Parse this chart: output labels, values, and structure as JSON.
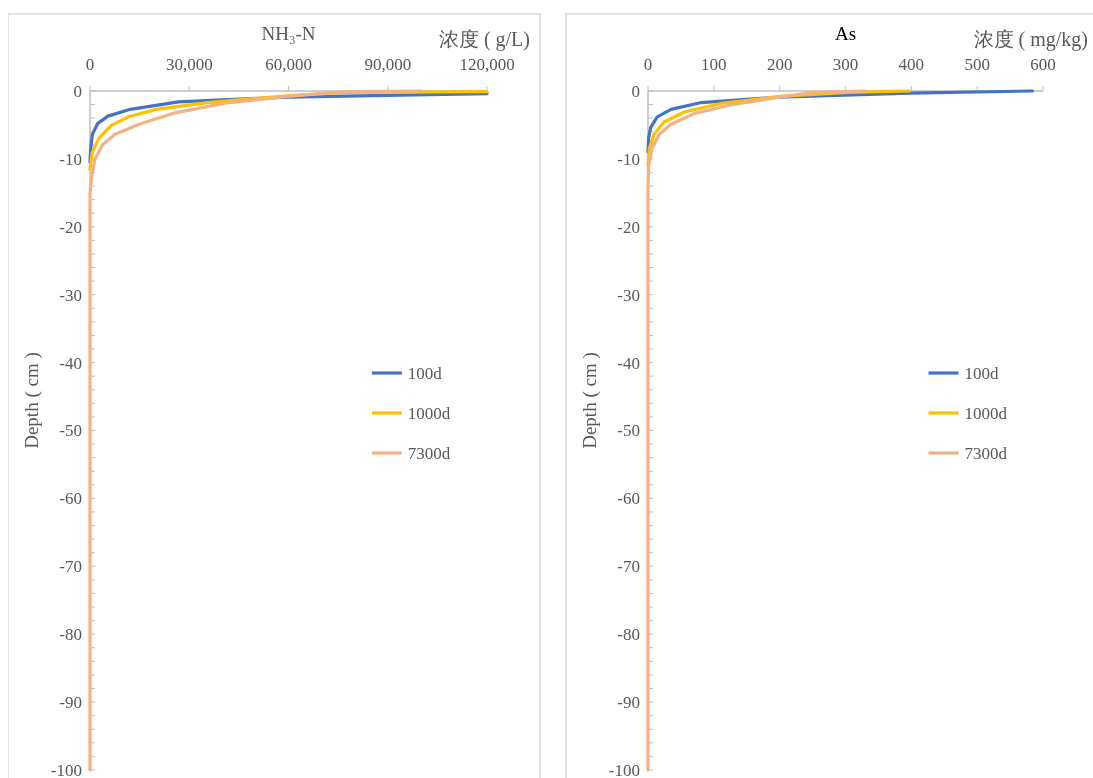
{
  "chart_data": [
    {
      "type": "line",
      "title": "NH₃-N",
      "xlabel": "浓度 ( g/L)",
      "ylabel": "Depth ( cm )",
      "xlim": [
        0,
        120000
      ],
      "xticks": [
        0,
        {
          "value": 30000,
          "label": "30,000"
        },
        {
          "value": 60000,
          "label": "60,000"
        },
        {
          "value": 90000,
          "label": "90,000"
        },
        {
          "value": 120000,
          "label": "120,000"
        }
      ],
      "ylim": [
        -100,
        0
      ],
      "yticks": [
        0,
        {
          "value": -2,
          "label": null
        },
        {
          "value": -4,
          "label": null
        },
        {
          "value": -6,
          "label": null
        },
        {
          "value": -8,
          "label": null
        },
        -10,
        {
          "value": -12,
          "label": null
        },
        {
          "value": -14,
          "label": null
        },
        {
          "value": -16,
          "label": null
        },
        {
          "value": -18,
          "label": null
        },
        -20,
        {
          "value": -22,
          "label": null
        },
        {
          "value": -24,
          "label": null
        },
        {
          "value": -26,
          "label": null
        },
        {
          "value": -28,
          "label": null
        },
        -30,
        {
          "value": -32,
          "label": null
        },
        {
          "value": -34,
          "label": null
        },
        {
          "value": -36,
          "label": null
        },
        {
          "value": -38,
          "label": null
        },
        -40,
        {
          "value": -42,
          "label": null
        },
        {
          "value": -44,
          "label": null
        },
        {
          "value": -46,
          "label": null
        },
        {
          "value": -48,
          "label": null
        },
        -50,
        {
          "value": -52,
          "label": null
        },
        {
          "value": -54,
          "label": null
        },
        {
          "value": -56,
          "label": null
        },
        {
          "value": -58,
          "label": null
        },
        -60,
        {
          "value": -62,
          "label": null
        },
        {
          "value": -64,
          "label": null
        },
        {
          "value": -66,
          "label": null
        },
        {
          "value": -68,
          "label": null
        },
        -70,
        {
          "value": -72,
          "label": null
        },
        {
          "value": -74,
          "label": null
        },
        {
          "value": -76,
          "label": null
        },
        {
          "value": -78,
          "label": null
        },
        -80,
        {
          "value": -82,
          "label": null
        },
        {
          "value": -84,
          "label": null
        },
        {
          "value": -86,
          "label": null
        },
        {
          "value": -88,
          "label": null
        },
        -90,
        {
          "value": -92,
          "label": null
        },
        {
          "value": -94,
          "label": null
        },
        {
          "value": -96,
          "label": null
        },
        {
          "value": -98,
          "label": null
        },
        -100
      ],
      "legend": "right",
      "line_style": "solid",
      "marker": "none",
      "series": [
        {
          "name": "100d",
          "color": "#4472c4",
          "x": [
            120000,
            59500,
            26700,
            12200,
            5400,
            2300,
            700,
            200,
            0
          ],
          "values": [
            -0.4,
            -0.9,
            -1.6,
            -2.7,
            -3.7,
            -4.8,
            -6.4,
            -8.5,
            -10.5
          ]
        },
        {
          "name": "1000d",
          "color": "#ffc000",
          "x": [
            120000,
            77000,
            59500,
            35500,
            20000,
            11600,
            6400,
            2800,
            700,
            0
          ],
          "values": [
            -0.1,
            -0.2,
            -0.7,
            -1.7,
            -2.7,
            -3.8,
            -5.1,
            -6.9,
            -9,
            -11.5
          ]
        },
        {
          "name": "7300d",
          "color": "#f4b183",
          "x": [
            100000,
            77000,
            59500,
            40700,
            25000,
            14800,
            7500,
            3800,
            1500,
            400,
            0,
            0
          ],
          "values": [
            0,
            -0.1,
            -0.8,
            -1.8,
            -3.3,
            -4.9,
            -6.4,
            -7.9,
            -10,
            -13,
            -15,
            -100
          ]
        }
      ]
    },
    {
      "type": "line",
      "title": "As",
      "xlabel": "浓度 ( mg/kg)",
      "ylabel": "Depth ( cm )",
      "xlim": [
        0,
        600
      ],
      "xticks": [
        0,
        100,
        200,
        300,
        400,
        500,
        600
      ],
      "ylim": [
        -100,
        0
      ],
      "yticks": [
        0,
        {
          "value": -2,
          "label": null
        },
        {
          "value": -4,
          "label": null
        },
        {
          "value": -6,
          "label": null
        },
        {
          "value": -8,
          "label": null
        },
        -10,
        {
          "value": -12,
          "label": null
        },
        {
          "value": -14,
          "label": null
        },
        {
          "value": -16,
          "label": null
        },
        {
          "value": -18,
          "label": null
        },
        -20,
        {
          "value": -22,
          "label": null
        },
        {
          "value": -24,
          "label": null
        },
        {
          "value": -26,
          "label": null
        },
        {
          "value": -28,
          "label": null
        },
        -30,
        {
          "value": -32,
          "label": null
        },
        {
          "value": -34,
          "label": null
        },
        {
          "value": -36,
          "label": null
        },
        {
          "value": -38,
          "label": null
        },
        -40,
        {
          "value": -42,
          "label": null
        },
        {
          "value": -44,
          "label": null
        },
        {
          "value": -46,
          "label": null
        },
        {
          "value": -48,
          "label": null
        },
        -50,
        {
          "value": -52,
          "label": null
        },
        {
          "value": -54,
          "label": null
        },
        {
          "value": -56,
          "label": null
        },
        {
          "value": -58,
          "label": null
        },
        -60,
        {
          "value": -62,
          "label": null
        },
        {
          "value": -64,
          "label": null
        },
        {
          "value": -66,
          "label": null
        },
        {
          "value": -68,
          "label": null
        },
        -70,
        {
          "value": -72,
          "label": null
        },
        {
          "value": -74,
          "label": null
        },
        {
          "value": -76,
          "label": null
        },
        {
          "value": -78,
          "label": null
        },
        -80,
        {
          "value": -82,
          "label": null
        },
        {
          "value": -84,
          "label": null
        },
        {
          "value": -86,
          "label": null
        },
        {
          "value": -88,
          "label": null
        },
        -90,
        {
          "value": -92,
          "label": null
        },
        {
          "value": -94,
          "label": null
        },
        {
          "value": -96,
          "label": null
        },
        {
          "value": -98,
          "label": null
        },
        -100
      ],
      "legend": "right",
      "line_style": "solid",
      "marker": "none",
      "series": [
        {
          "name": "100d",
          "color": "#4472c4",
          "x": [
            584,
            397,
            200,
            81,
            35,
            14,
            4,
            1,
            0
          ],
          "values": [
            0,
            -0.3,
            -0.9,
            -1.7,
            -2.7,
            -3.8,
            -5.4,
            -6.9,
            -9
          ]
        },
        {
          "name": "1000d",
          "color": "#ffc000",
          "x": [
            397,
            304,
            200,
            112,
            55,
            24,
            9,
            2,
            0
          ],
          "values": [
            0,
            -0.2,
            -0.8,
            -1.8,
            -3.1,
            -4.6,
            -6.4,
            -8.5,
            -11
          ]
        },
        {
          "name": "7300d",
          "color": "#f4b183",
          "x": [
            330,
            252,
            200,
            123,
            71,
            35,
            17,
            6,
            1,
            0,
            0
          ],
          "values": [
            0,
            -0.2,
            -0.9,
            -2.1,
            -3.3,
            -4.9,
            -6.4,
            -8.5,
            -11,
            -14,
            -100
          ]
        }
      ]
    }
  ]
}
